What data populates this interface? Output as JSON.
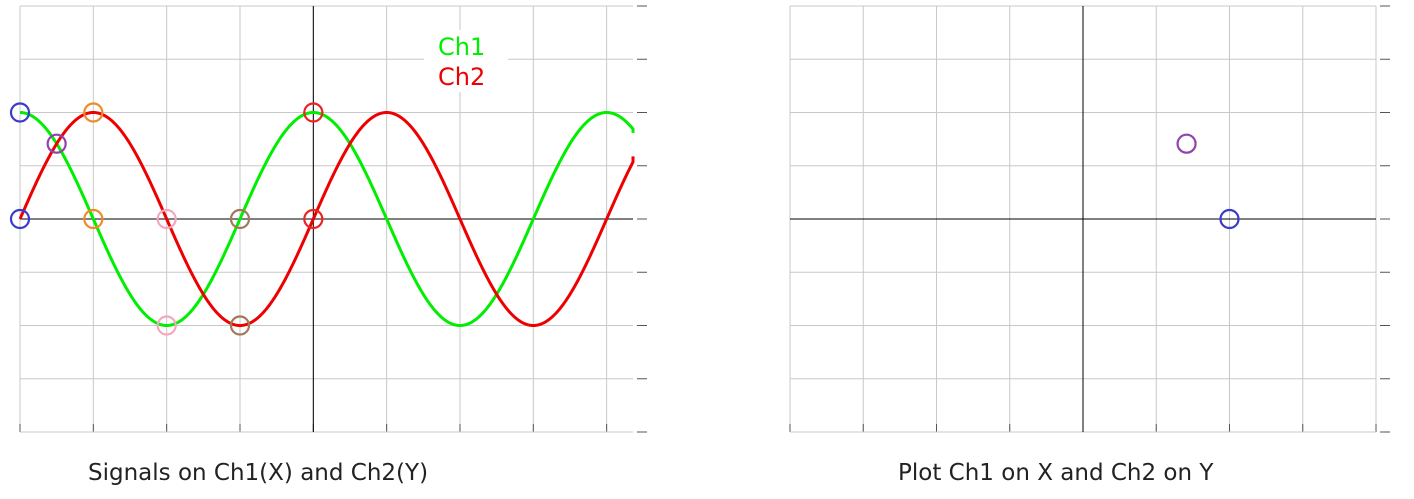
{
  "legend": {
    "ch1": {
      "label": "Ch1",
      "color": "#00ee00"
    },
    "ch2": {
      "label": "Ch2",
      "color": "#ee0000"
    }
  },
  "captions": {
    "left": "Signals on Ch1(X) and Ch2(Y)",
    "right": "Plot Ch1 on X and Ch2 on Y"
  },
  "chart_data": [
    {
      "type": "line",
      "caption": "Signals on Ch1(X) and Ch2(Y)",
      "grid": true,
      "xlim": [
        0,
        8.4
      ],
      "ylim": [
        -4,
        4
      ],
      "series": [
        {
          "name": "Ch1",
          "color": "#00ee00",
          "function": "cos",
          "amplitude": 2,
          "period": 4,
          "phase_degrees": 0
        },
        {
          "name": "Ch2",
          "color": "#ee0000",
          "function": "sin",
          "amplitude": 2,
          "period": 4,
          "phase_degrees": 0
        }
      ],
      "markers": [
        {
          "x": 0,
          "y": 2,
          "color": "#3a3acc"
        },
        {
          "x": 0,
          "y": 0,
          "color": "#3a3acc"
        },
        {
          "x": 0.5,
          "y": 1.414,
          "color": "#8e44ad"
        },
        {
          "x": 1,
          "y": 2,
          "color": "#f08a24"
        },
        {
          "x": 1,
          "y": 0,
          "color": "#f08a24"
        },
        {
          "x": 2,
          "y": -2,
          "color": "#f4a7c0"
        },
        {
          "x": 2,
          "y": 0,
          "color": "#f4a7c0"
        },
        {
          "x": 3,
          "y": -2,
          "color": "#a0785a"
        },
        {
          "x": 3,
          "y": 0,
          "color": "#a0785a"
        },
        {
          "x": 4,
          "y": 2,
          "color": "#ee2222"
        },
        {
          "x": 4,
          "y": 0,
          "color": "#ee2222"
        }
      ]
    },
    {
      "type": "scatter",
      "caption": "Plot Ch1 on X and Ch2 on Y",
      "grid": true,
      "xlim": [
        -4,
        4
      ],
      "ylim": [
        -4,
        4
      ],
      "points": [
        {
          "x": 1.414,
          "y": 1.414,
          "color": "#8e44ad"
        },
        {
          "x": 2,
          "y": 0,
          "color": "#3a3acc"
        }
      ]
    }
  ]
}
